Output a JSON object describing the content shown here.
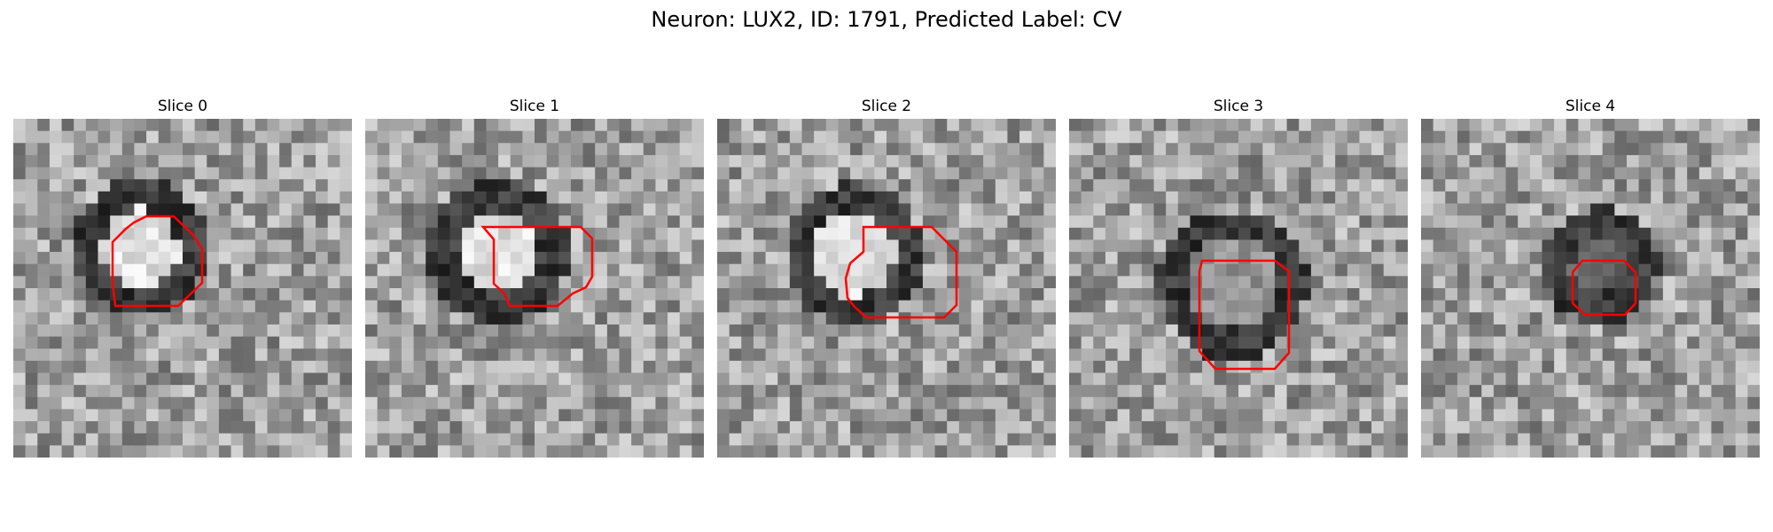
{
  "figure": {
    "title": "Neuron: LUX2, ID: 1791, Predicted Label: CV"
  },
  "panels": [
    {
      "title": "Slice 0",
      "center": "bright",
      "contour_color": "#ff0000"
    },
    {
      "title": "Slice 1",
      "center": "bright",
      "contour_color": "#ff0000"
    },
    {
      "title": "Slice 2",
      "center": "bright",
      "contour_color": "#ff0000"
    },
    {
      "title": "Slice 3",
      "center": "mid",
      "contour_color": "#ff0000"
    },
    {
      "title": "Slice 4",
      "center": "dark",
      "contour_color": "#ff0000"
    }
  ],
  "colors": {
    "colormap": "gray",
    "contour": "#ff0000",
    "background": "#ffffff"
  }
}
